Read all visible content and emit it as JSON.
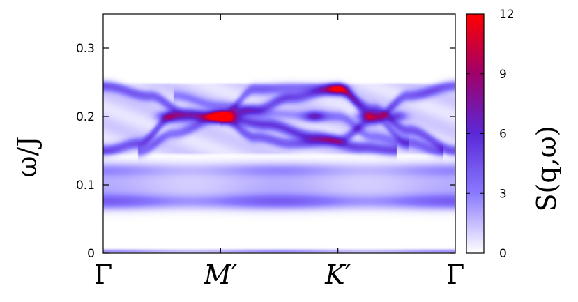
{
  "chart_data": {
    "type": "heatmap",
    "ylabel": "ω/J",
    "colorbar_label": "S(q,ω)",
    "ylim": [
      0,
      0.35
    ],
    "y_ticks": [
      {
        "value": 0,
        "label": "0"
      },
      {
        "value": 0.1,
        "label": "0.1"
      },
      {
        "value": 0.2,
        "label": "0.2"
      },
      {
        "value": 0.3,
        "label": "0.3"
      }
    ],
    "x_ticks": [
      {
        "value": 0,
        "label": "Γ"
      },
      {
        "value": 1,
        "label": "M′"
      },
      {
        "value": 2,
        "label": "K′"
      },
      {
        "value": 3,
        "label": "Γ"
      }
    ],
    "colorbar": {
      "range": [
        0,
        12
      ],
      "ticks": [
        {
          "value": 0,
          "label": "0"
        },
        {
          "value": 3,
          "label": "3"
        },
        {
          "value": 6,
          "label": "6"
        },
        {
          "value": 9,
          "label": "9"
        },
        {
          "value": 12,
          "label": "12"
        }
      ],
      "colors": [
        "#ffffff",
        "#8a7aff",
        "#5a28d8",
        "#a0006a",
        "#ff0000"
      ]
    },
    "flat_bands": [
      {
        "omega": 0.003,
        "x_range": [
          0,
          3
        ],
        "intensity": 2.5,
        "width": 0.002
      },
      {
        "omega": 0.075,
        "x_range": [
          0,
          3
        ],
        "intensity": 3.5,
        "width": 0.008
      },
      {
        "omega": 0.098,
        "x_range": [
          0,
          3
        ],
        "intensity": 1.8,
        "width": 0.015
      },
      {
        "omega": 0.122,
        "x_range": [
          0,
          3
        ],
        "intensity": 2.2,
        "width": 0.008
      }
    ],
    "continuum": {
      "omega_range": [
        0.143,
        0.25
      ],
      "x_range": [
        0,
        3
      ],
      "intensity": 1.0
    },
    "dispersive_modes": [
      {
        "x": [
          0,
          0.4,
          0.7,
          1.0,
          1.3,
          1.6,
          2.0,
          2.3,
          2.6,
          3.0
        ],
        "omega": [
          0.245,
          0.23,
          0.205,
          0.198,
          0.17,
          0.16,
          0.165,
          0.195,
          0.23,
          0.245
        ],
        "intensity": 3.5
      },
      {
        "x": [
          0,
          0.3,
          0.6,
          1.0,
          1.3,
          1.6,
          2.0,
          2.3,
          2.6,
          3.0
        ],
        "omega": [
          0.15,
          0.16,
          0.2,
          0.2,
          0.21,
          0.228,
          0.24,
          0.21,
          0.18,
          0.15
        ],
        "intensity": 3.8
      },
      {
        "x": [
          0.3,
          0.6,
          1.0,
          1.3,
          1.6,
          2.0,
          2.3,
          2.6,
          2.9
        ],
        "omega": [
          0.148,
          0.175,
          0.2,
          0.24,
          0.242,
          0.24,
          0.2,
          0.162,
          0.148
        ],
        "intensity": 2.8
      },
      {
        "x": [
          0.6,
          1.0,
          1.4,
          1.8,
          2.0,
          2.3,
          2.6
        ],
        "omega": [
          0.23,
          0.215,
          0.205,
          0.2,
          0.2,
          0.17,
          0.16
        ],
        "intensity": 2.0
      },
      {
        "x": [
          1.0,
          1.4,
          1.8,
          2.2,
          2.5
        ],
        "omega": [
          0.198,
          0.188,
          0.17,
          0.155,
          0.15
        ],
        "intensity": 4.2
      }
    ],
    "hot_spots": [
      {
        "x": 1.0,
        "omega": 0.2,
        "intensity": 9.0
      },
      {
        "x": 0.55,
        "omega": 0.2,
        "intensity": 4.5
      },
      {
        "x": 2.0,
        "omega": 0.24,
        "intensity": 5.5
      },
      {
        "x": 2.25,
        "omega": 0.2,
        "intensity": 5.0
      },
      {
        "x": 1.8,
        "omega": 0.2,
        "intensity": 4.0
      },
      {
        "x": 2.5,
        "omega": 0.2,
        "intensity": 3.8
      }
    ]
  }
}
